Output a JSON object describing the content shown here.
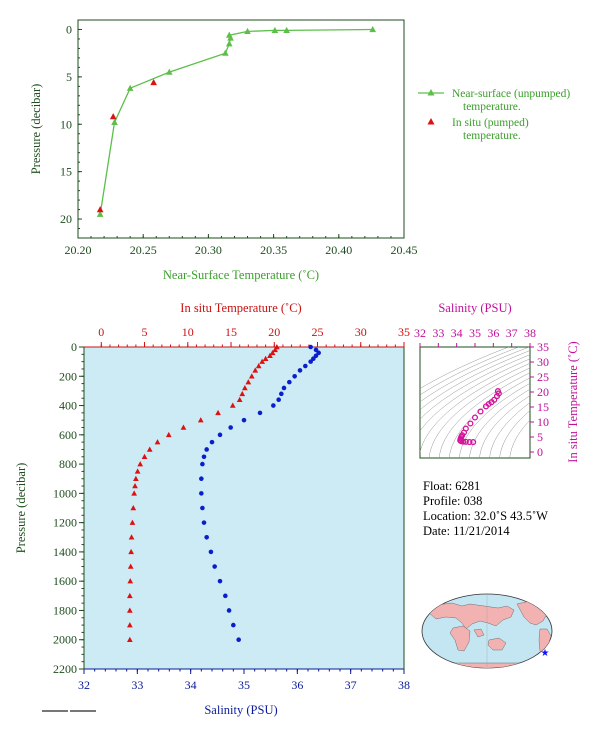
{
  "colors": {
    "near_surface": "#5cbf4a",
    "in_situ": "#dd1111",
    "salinity": "#0a1fcc",
    "ts_magenta": "#d4139a",
    "axis_dark": "#1e4d1e",
    "axis_red": "#cc1111",
    "axis_blue": "#0a1a99",
    "axis_magenta": "#c0109a",
    "panel_bg": "#cdebf5",
    "land": "#f2b2b2",
    "ocean": "#c4e6f2"
  },
  "chart_data": [
    {
      "id": "near-surface",
      "type": "line",
      "xlabel": "Near-Surface Temperature (˚C)",
      "ylabel": "Pressure (decibar)",
      "xlim": [
        20.2,
        20.45
      ],
      "ylim": [
        22,
        -1
      ],
      "xticks": [
        "20.20",
        "20.25",
        "20.30",
        "20.35",
        "20.40",
        "20.45"
      ],
      "yticks": [
        "0",
        "5",
        "10",
        "15",
        "20"
      ],
      "legend_position": "right",
      "series": [
        {
          "name": "Near-surface (unpumped) temperature.",
          "marker": "triangle",
          "points": [
            [
              20.426,
              0.0
            ],
            [
              20.36,
              0.1
            ],
            [
              20.351,
              0.1
            ],
            [
              20.33,
              0.2
            ],
            [
              20.316,
              0.6
            ],
            [
              20.317,
              0.9
            ],
            [
              20.316,
              1.5
            ],
            [
              20.313,
              2.5
            ],
            [
              20.27,
              4.5
            ],
            [
              20.24,
              6.2
            ],
            [
              20.228,
              9.8
            ],
            [
              20.217,
              19.5
            ]
          ]
        },
        {
          "name": "In situ (pumped) temperature.",
          "marker": "triangle",
          "points": [
            [
              20.258,
              5.6
            ],
            [
              20.227,
              9.2
            ],
            [
              20.217,
              19.0
            ]
          ]
        }
      ]
    },
    {
      "id": "profile",
      "type": "scatter",
      "xlabel_top": "In situ Temperature (˚C)",
      "xlabel_bottom": "Salinity (PSU)",
      "ylabel": "Pressure (decibar)",
      "temp_lim": [
        -2,
        35
      ],
      "sal_lim": [
        32,
        38
      ],
      "ylim": [
        2200,
        0
      ],
      "temp_ticks": [
        "0",
        "5",
        "10",
        "15",
        "20",
        "25",
        "30",
        "35"
      ],
      "sal_ticks": [
        "32",
        "33",
        "34",
        "35",
        "36",
        "37",
        "38"
      ],
      "yticks": [
        "0",
        "200",
        "400",
        "600",
        "800",
        "1000",
        "1200",
        "1400",
        "1600",
        "1800",
        "2000",
        "2200"
      ],
      "temperature": [
        [
          20.3,
          0
        ],
        [
          20.1,
          20
        ],
        [
          19.8,
          40
        ],
        [
          19.5,
          60
        ],
        [
          19.0,
          80
        ],
        [
          18.6,
          100
        ],
        [
          18.2,
          130
        ],
        [
          17.8,
          160
        ],
        [
          17.4,
          200
        ],
        [
          17.0,
          240
        ],
        [
          16.6,
          280
        ],
        [
          16.3,
          320
        ],
        [
          16.0,
          360
        ],
        [
          15.2,
          400
        ],
        [
          13.5,
          450
        ],
        [
          11.5,
          500
        ],
        [
          9.5,
          550
        ],
        [
          7.8,
          600
        ],
        [
          6.5,
          650
        ],
        [
          5.6,
          700
        ],
        [
          5.0,
          750
        ],
        [
          4.5,
          800
        ],
        [
          4.2,
          850
        ],
        [
          4.0,
          900
        ],
        [
          3.9,
          950
        ],
        [
          3.8,
          1000
        ],
        [
          3.7,
          1100
        ],
        [
          3.6,
          1200
        ],
        [
          3.5,
          1300
        ],
        [
          3.45,
          1400
        ],
        [
          3.4,
          1500
        ],
        [
          3.35,
          1600
        ],
        [
          3.3,
          1700
        ],
        [
          3.3,
          1800
        ],
        [
          3.3,
          1900
        ],
        [
          3.3,
          2000
        ]
      ],
      "salinity": [
        [
          36.25,
          0
        ],
        [
          36.35,
          20
        ],
        [
          36.4,
          40
        ],
        [
          36.35,
          60
        ],
        [
          36.3,
          80
        ],
        [
          36.25,
          100
        ],
        [
          36.15,
          130
        ],
        [
          36.05,
          160
        ],
        [
          35.95,
          200
        ],
        [
          35.85,
          240
        ],
        [
          35.75,
          280
        ],
        [
          35.7,
          320
        ],
        [
          35.65,
          360
        ],
        [
          35.55,
          400
        ],
        [
          35.3,
          450
        ],
        [
          35.0,
          500
        ],
        [
          34.75,
          550
        ],
        [
          34.55,
          600
        ],
        [
          34.4,
          650
        ],
        [
          34.3,
          700
        ],
        [
          34.25,
          750
        ],
        [
          34.22,
          800
        ],
        [
          34.2,
          900
        ],
        [
          34.2,
          1000
        ],
        [
          34.22,
          1100
        ],
        [
          34.25,
          1200
        ],
        [
          34.3,
          1300
        ],
        [
          34.38,
          1400
        ],
        [
          34.45,
          1500
        ],
        [
          34.55,
          1600
        ],
        [
          34.65,
          1700
        ],
        [
          34.72,
          1800
        ],
        [
          34.8,
          1900
        ],
        [
          34.9,
          2000
        ]
      ]
    },
    {
      "id": "ts-diagram",
      "type": "scatter",
      "xlabel": "Salinity (PSU)",
      "ylabel": "In situ Temperature (˚C)",
      "xlim": [
        32,
        38
      ],
      "ylim": [
        -2,
        35
      ],
      "xticks": [
        "32",
        "33",
        "34",
        "35",
        "36",
        "37",
        "38"
      ],
      "yticks": [
        "0",
        "5",
        "10",
        "15",
        "20",
        "25",
        "30",
        "35"
      ],
      "points": [
        [
          36.25,
          20.3
        ],
        [
          36.3,
          19.5
        ],
        [
          36.2,
          18.6
        ],
        [
          36.05,
          17.4
        ],
        [
          35.9,
          16.6
        ],
        [
          35.75,
          16.0
        ],
        [
          35.6,
          15.2
        ],
        [
          35.3,
          13.5
        ],
        [
          35.0,
          11.5
        ],
        [
          34.75,
          9.5
        ],
        [
          34.5,
          7.8
        ],
        [
          34.4,
          6.5
        ],
        [
          34.3,
          5.6
        ],
        [
          34.25,
          5.0
        ],
        [
          34.22,
          4.5
        ],
        [
          34.2,
          4.0
        ],
        [
          34.2,
          3.8
        ],
        [
          34.25,
          3.6
        ],
        [
          34.35,
          3.45
        ],
        [
          34.5,
          3.4
        ],
        [
          34.7,
          3.3
        ],
        [
          34.9,
          3.3
        ]
      ]
    }
  ],
  "float_info": {
    "float": "Float:  6281",
    "profile": "Profile:  038",
    "location": "Location:  32.0˚S  43.5˚W",
    "date": "Date:  11/21/2014"
  },
  "map": {
    "marker_icon": "float-location-star-icon",
    "lon": -43.5,
    "lat": -32.0
  }
}
